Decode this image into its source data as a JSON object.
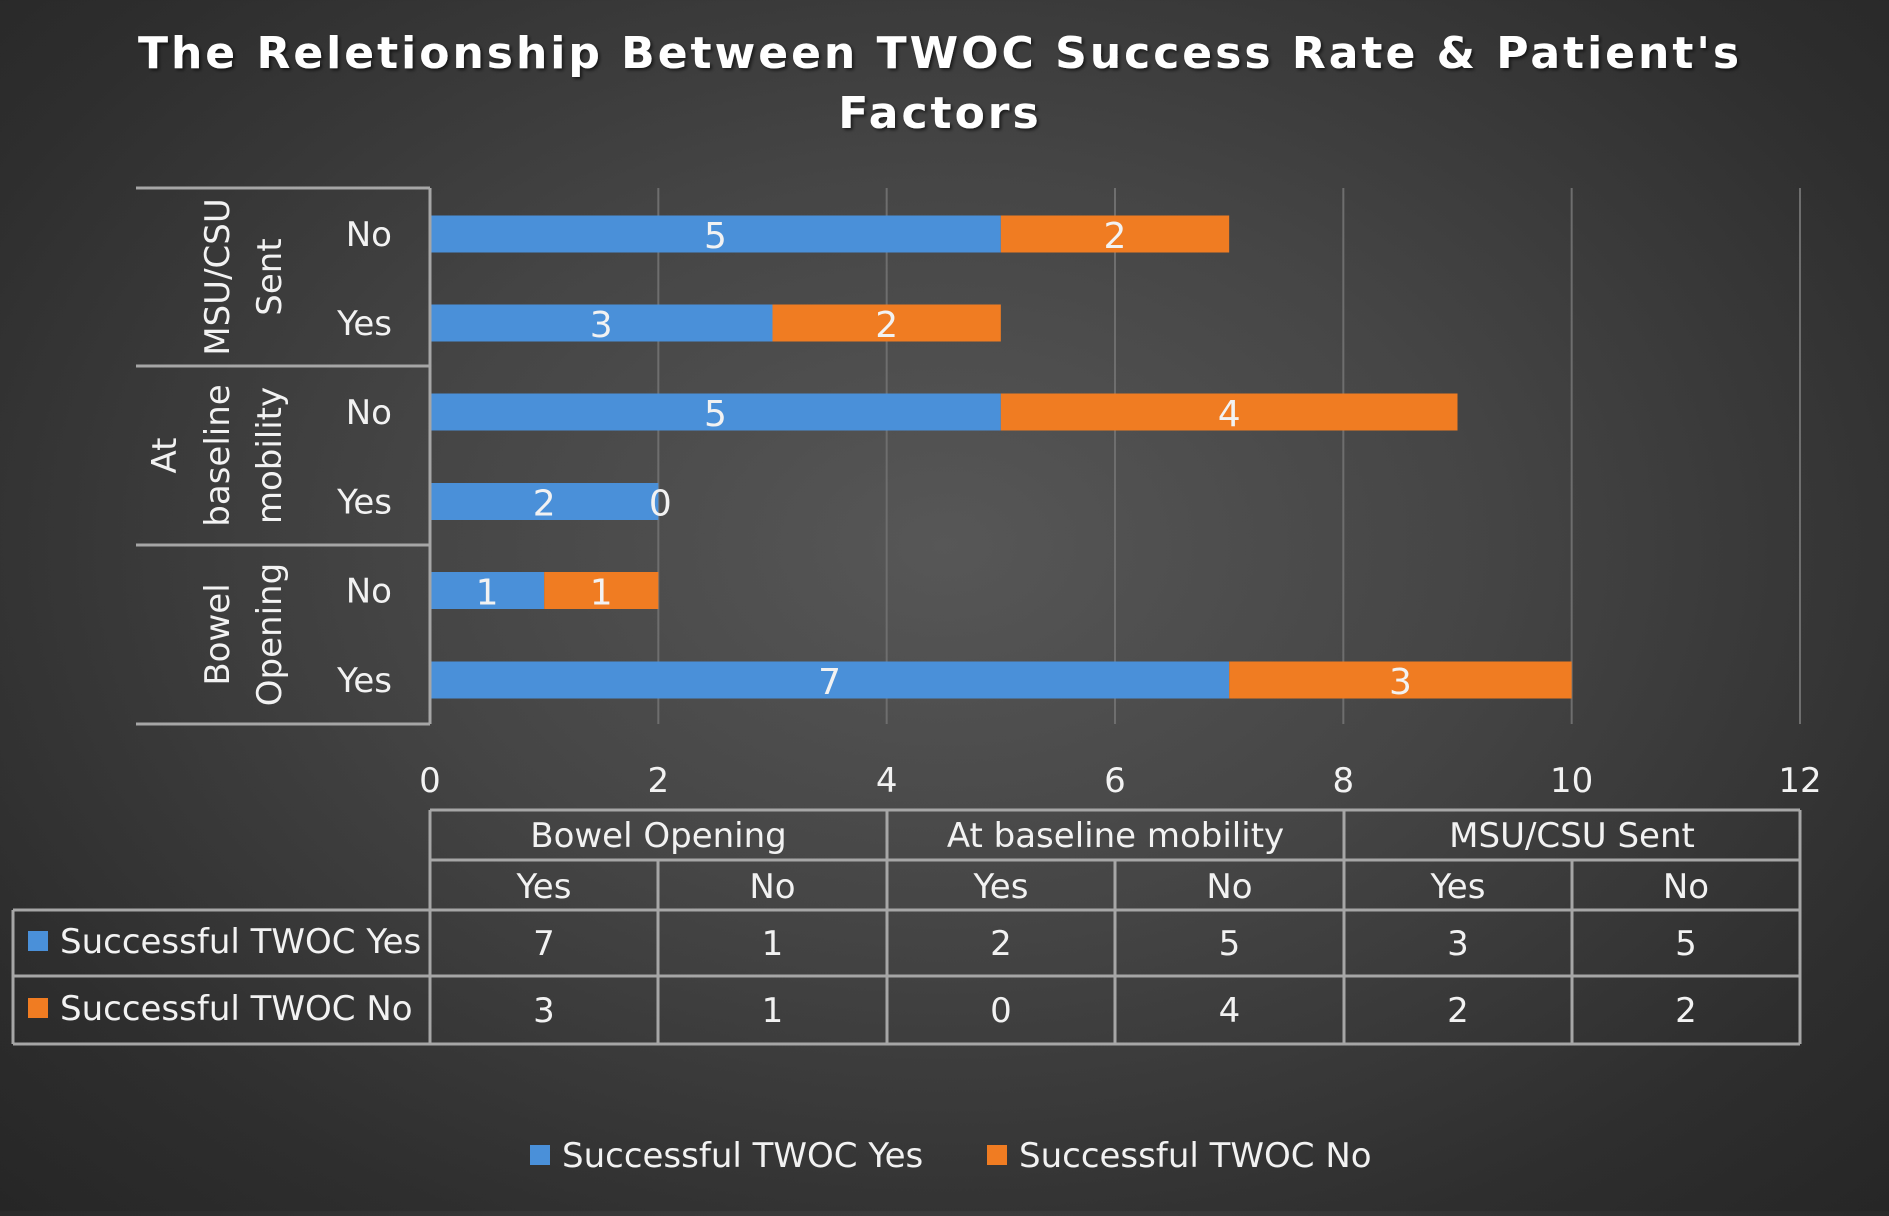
{
  "chart_data": {
    "type": "bar",
    "orientation": "horizontal",
    "stacked": true,
    "title": "The Reletionship Between TWOC Success Rate & Patient's Factors",
    "title_lines": [
      "The Reletionship Between TWOC Success Rate & Patient's",
      "Factors"
    ],
    "groups": [
      {
        "name": "Bowel Opening",
        "name_lines": [
          "Bowel",
          "Opening"
        ],
        "categories": [
          "Yes",
          "No"
        ]
      },
      {
        "name": "At baseline mobility",
        "name_lines": [
          "At",
          "baseline",
          "mobility"
        ],
        "categories": [
          "Yes",
          "No"
        ]
      },
      {
        "name": "MSU/CSU Sent",
        "name_lines": [
          "MSU/CSU",
          "Sent"
        ],
        "categories": [
          "Yes",
          "No"
        ]
      }
    ],
    "series": [
      {
        "name": "Successful TWOC Yes",
        "color": "#4a90d9",
        "values": [
          7,
          1,
          2,
          5,
          3,
          5
        ]
      },
      {
        "name": "Successful TWOC No",
        "color": "#f07c22",
        "values": [
          3,
          1,
          0,
          4,
          2,
          2
        ]
      }
    ],
    "xlim": [
      0,
      12
    ],
    "xticks": [
      "0",
      "2",
      "4",
      "6",
      "8",
      "10",
      "12"
    ],
    "grid": true,
    "data_table": true,
    "legend_position": "bottom"
  }
}
